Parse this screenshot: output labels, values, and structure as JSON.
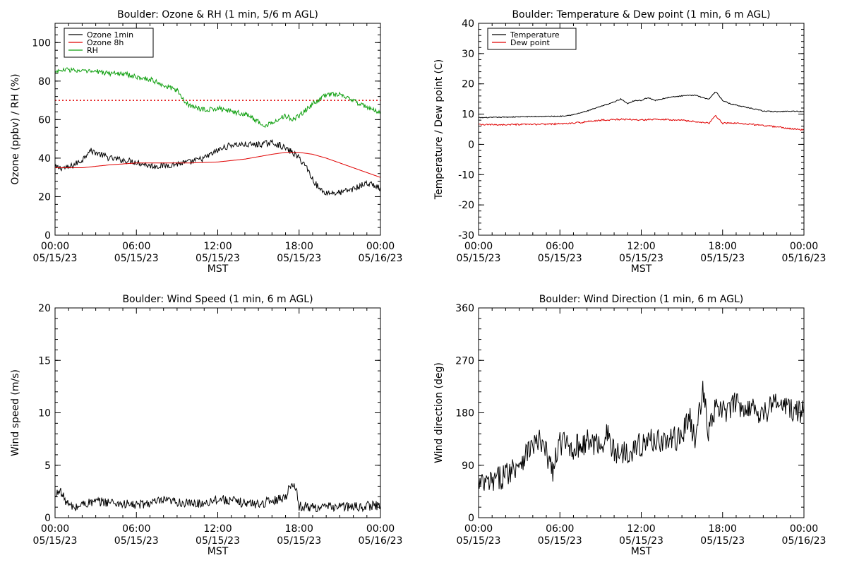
{
  "chart_data": [
    {
      "type": "line",
      "title": "Boulder: Ozone & RH (1 min, 5/6 m AGL)",
      "xlabel": "MST",
      "ylabel": "Ozone (ppbv) / RH (%)",
      "x_ticks": [
        "00:00",
        "06:00",
        "12:00",
        "18:00",
        "00:00"
      ],
      "x_tick_dates": [
        "05/15/23",
        "05/15/23",
        "05/15/23",
        "05/15/23",
        "05/16/23"
      ],
      "xlim_hours": [
        0,
        24
      ],
      "ylim": [
        0,
        110
      ],
      "y_ticks": [
        0,
        20,
        40,
        60,
        80,
        100
      ],
      "reference_line": {
        "y": 70,
        "color": "#e00000",
        "style": "dotted"
      },
      "legend": {
        "placement": "top-left",
        "entries": [
          "Ozone 1min",
          "Ozone 8h",
          "RH"
        ]
      },
      "series": [
        {
          "name": "Ozone 1min",
          "color": "#000000",
          "noise": 1.6,
          "x": [
            0,
            1,
            2,
            2.5,
            3,
            4,
            5,
            6,
            7,
            8,
            9,
            10,
            11,
            12,
            13,
            14,
            15,
            16,
            16.5,
            17,
            17.5,
            18,
            18.5,
            19,
            19.5,
            20,
            21,
            22,
            23,
            23.5,
            24
          ],
          "y": [
            35,
            35,
            39,
            44,
            43,
            40,
            39,
            38,
            36,
            36,
            37,
            38,
            40,
            44,
            47,
            47,
            47,
            48,
            47,
            45,
            43,
            40,
            36,
            29,
            24,
            22,
            22,
            24,
            27,
            26,
            24
          ]
        },
        {
          "name": "Ozone 8h",
          "color": "#e00000",
          "noise": 0,
          "x": [
            0,
            2,
            4,
            6,
            8,
            10,
            12,
            14,
            16,
            17,
            18,
            19,
            20,
            22,
            24
          ],
          "y": [
            35,
            35,
            36.5,
            37.5,
            37.5,
            37.5,
            38,
            39.5,
            42,
            43,
            43,
            42,
            40,
            35,
            30
          ]
        },
        {
          "name": "RH",
          "color": "#10a010",
          "noise": 1.3,
          "x": [
            0,
            1,
            2,
            3,
            4,
            5,
            6,
            7,
            8,
            9,
            9.5,
            10,
            11,
            12,
            13,
            14,
            15,
            15.5,
            16,
            17,
            17.5,
            18,
            19,
            20,
            21,
            22,
            23,
            24
          ],
          "y": [
            85,
            86,
            85,
            85,
            84,
            84,
            82,
            81,
            78,
            75,
            70,
            67,
            65,
            66,
            64,
            63,
            59,
            56,
            59,
            62,
            60,
            62,
            68,
            73,
            73,
            70,
            66,
            64
          ]
        }
      ]
    },
    {
      "type": "line",
      "title": "Boulder: Temperature & Dew point (1 min, 6 m AGL)",
      "xlabel": "MST",
      "ylabel": "Temperature / Dew point (C)",
      "x_ticks": [
        "00:00",
        "06:00",
        "12:00",
        "18:00",
        "00:00"
      ],
      "x_tick_dates": [
        "05/15/23",
        "05/15/23",
        "05/15/23",
        "05/15/23",
        "05/16/23"
      ],
      "xlim_hours": [
        0,
        24
      ],
      "ylim": [
        -30,
        40
      ],
      "y_ticks": [
        -30,
        -20,
        -10,
        0,
        10,
        20,
        30,
        40
      ],
      "legend": {
        "placement": "top-left",
        "entries": [
          "Temperature",
          "Dew point"
        ]
      },
      "series": [
        {
          "name": "Temperature",
          "color": "#000000",
          "noise": 0.15,
          "x": [
            0,
            2,
            4,
            6,
            7,
            8,
            9,
            10,
            10.5,
            11,
            11.5,
            12,
            12.5,
            13,
            14,
            15,
            16,
            16.5,
            17,
            17.5,
            18,
            18.5,
            19,
            20,
            21,
            22,
            23,
            24
          ],
          "y": [
            8.8,
            9,
            9.2,
            9.3,
            9.8,
            11,
            12.5,
            14,
            15,
            13.5,
            14.5,
            14.5,
            15.5,
            14.5,
            15.5,
            16,
            16.3,
            15.5,
            15,
            17.5,
            14.5,
            13.5,
            13,
            12,
            11,
            10.8,
            11,
            10.8
          ]
        },
        {
          "name": "Dew point",
          "color": "#e00000",
          "noise": 0.25,
          "x": [
            0,
            2,
            4,
            6,
            7,
            8,
            9,
            10,
            11,
            12,
            13,
            14,
            15,
            16,
            17,
            17.5,
            18,
            19,
            20,
            21,
            22,
            23,
            24
          ],
          "y": [
            6.5,
            6.5,
            6.6,
            6.8,
            7,
            7.5,
            8,
            8.2,
            8.3,
            8,
            8.4,
            8.2,
            8,
            7.5,
            7,
            9.5,
            7,
            7,
            6.7,
            6.2,
            5.8,
            5.2,
            4.8
          ]
        }
      ]
    },
    {
      "type": "line",
      "title": "Boulder: Wind Speed (1 min, 6 m AGL)",
      "xlabel": "MST",
      "ylabel": "Wind speed (m/s)",
      "x_ticks": [
        "00:00",
        "06:00",
        "12:00",
        "18:00",
        "00:00"
      ],
      "x_tick_dates": [
        "05/15/23",
        "05/15/23",
        "05/15/23",
        "05/15/23",
        "05/16/23"
      ],
      "xlim_hours": [
        0,
        24
      ],
      "ylim": [
        0,
        20
      ],
      "y_ticks": [
        0,
        5,
        10,
        15,
        20
      ],
      "series": [
        {
          "name": "Wind speed",
          "color": "#000000",
          "noise": 0.45,
          "x": [
            0,
            0.3,
            0.5,
            1,
            1.5,
            2,
            3,
            4,
            5,
            6,
            7,
            8,
            9,
            10,
            11,
            12,
            13,
            14,
            15,
            16,
            17,
            17.5,
            17.8,
            18,
            19,
            20,
            21,
            22,
            23,
            24
          ],
          "y": [
            1.8,
            2.8,
            2.2,
            1.2,
            0.9,
            1.3,
            1.5,
            1.5,
            1.3,
            1.2,
            1.4,
            1.6,
            1.5,
            1.3,
            1.4,
            1.8,
            1.6,
            1.4,
            1.3,
            1.6,
            2.0,
            3.5,
            2.5,
            1.1,
            1.0,
            1.0,
            1.1,
            1.0,
            1.1,
            1.2
          ]
        }
      ]
    },
    {
      "type": "line",
      "title": "Boulder: Wind Direction (1 min, 6 m AGL)",
      "xlabel": "MST",
      "ylabel": "Wind direction (deg)",
      "x_ticks": [
        "00:00",
        "06:00",
        "12:00",
        "18:00",
        "00:00"
      ],
      "x_tick_dates": [
        "05/15/23",
        "05/15/23",
        "05/15/23",
        "05/15/23",
        "05/16/23"
      ],
      "xlim_hours": [
        0,
        24
      ],
      "ylim": [
        0,
        360
      ],
      "y_ticks": [
        0,
        90,
        180,
        270,
        360
      ],
      "series": [
        {
          "name": "Wind direction",
          "color": "#000000",
          "noise": 22,
          "x": [
            0,
            1,
            2,
            3,
            4,
            4.5,
            5,
            5.5,
            6,
            7,
            8,
            9,
            9.5,
            10,
            11,
            12,
            13,
            14,
            15,
            15.5,
            16,
            16.5,
            17,
            17.5,
            18,
            19,
            20,
            21,
            22,
            23,
            24
          ],
          "y": [
            55,
            60,
            75,
            95,
            125,
            130,
            110,
            80,
            130,
            120,
            130,
            125,
            145,
            110,
            115,
            125,
            135,
            130,
            140,
            175,
            130,
            220,
            145,
            190,
            180,
            195,
            190,
            180,
            200,
            185,
            180
          ]
        }
      ]
    }
  ]
}
